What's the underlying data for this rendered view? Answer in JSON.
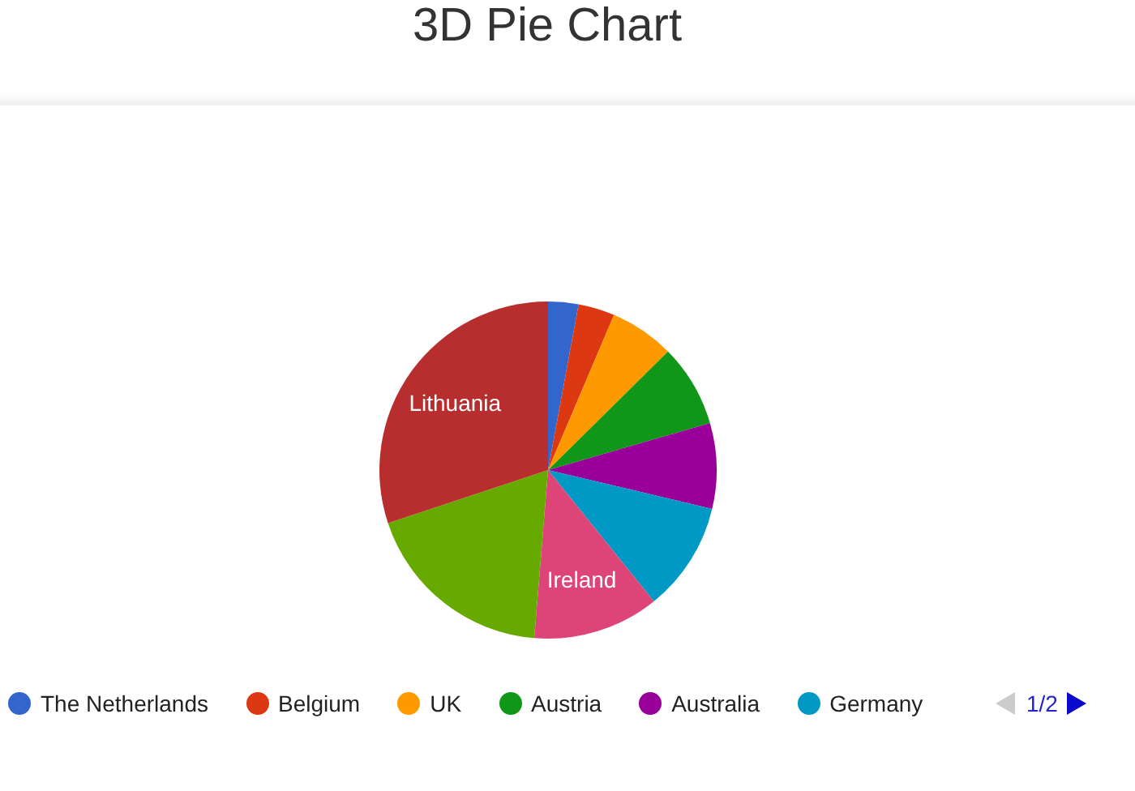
{
  "chart_data": {
    "type": "pie",
    "title": "3D Pie Chart",
    "categories": [
      "The Netherlands",
      "Belgium",
      "UK",
      "Austria",
      "Australia",
      "Germany",
      "Ireland",
      null,
      "Lithuania"
    ],
    "values": [
      2.9,
      3.5,
      6.2,
      7.9,
      8.2,
      10.5,
      12.1,
      18.6,
      30.1
    ],
    "colors": [
      "#3366cc",
      "#dc3912",
      "#ff9900",
      "#109618",
      "#990099",
      "#0099c6",
      "#dd4477",
      "#66aa00",
      "#b82e2e"
    ],
    "legend": "bottom",
    "annotations": [
      "1/2"
    ]
  }
}
